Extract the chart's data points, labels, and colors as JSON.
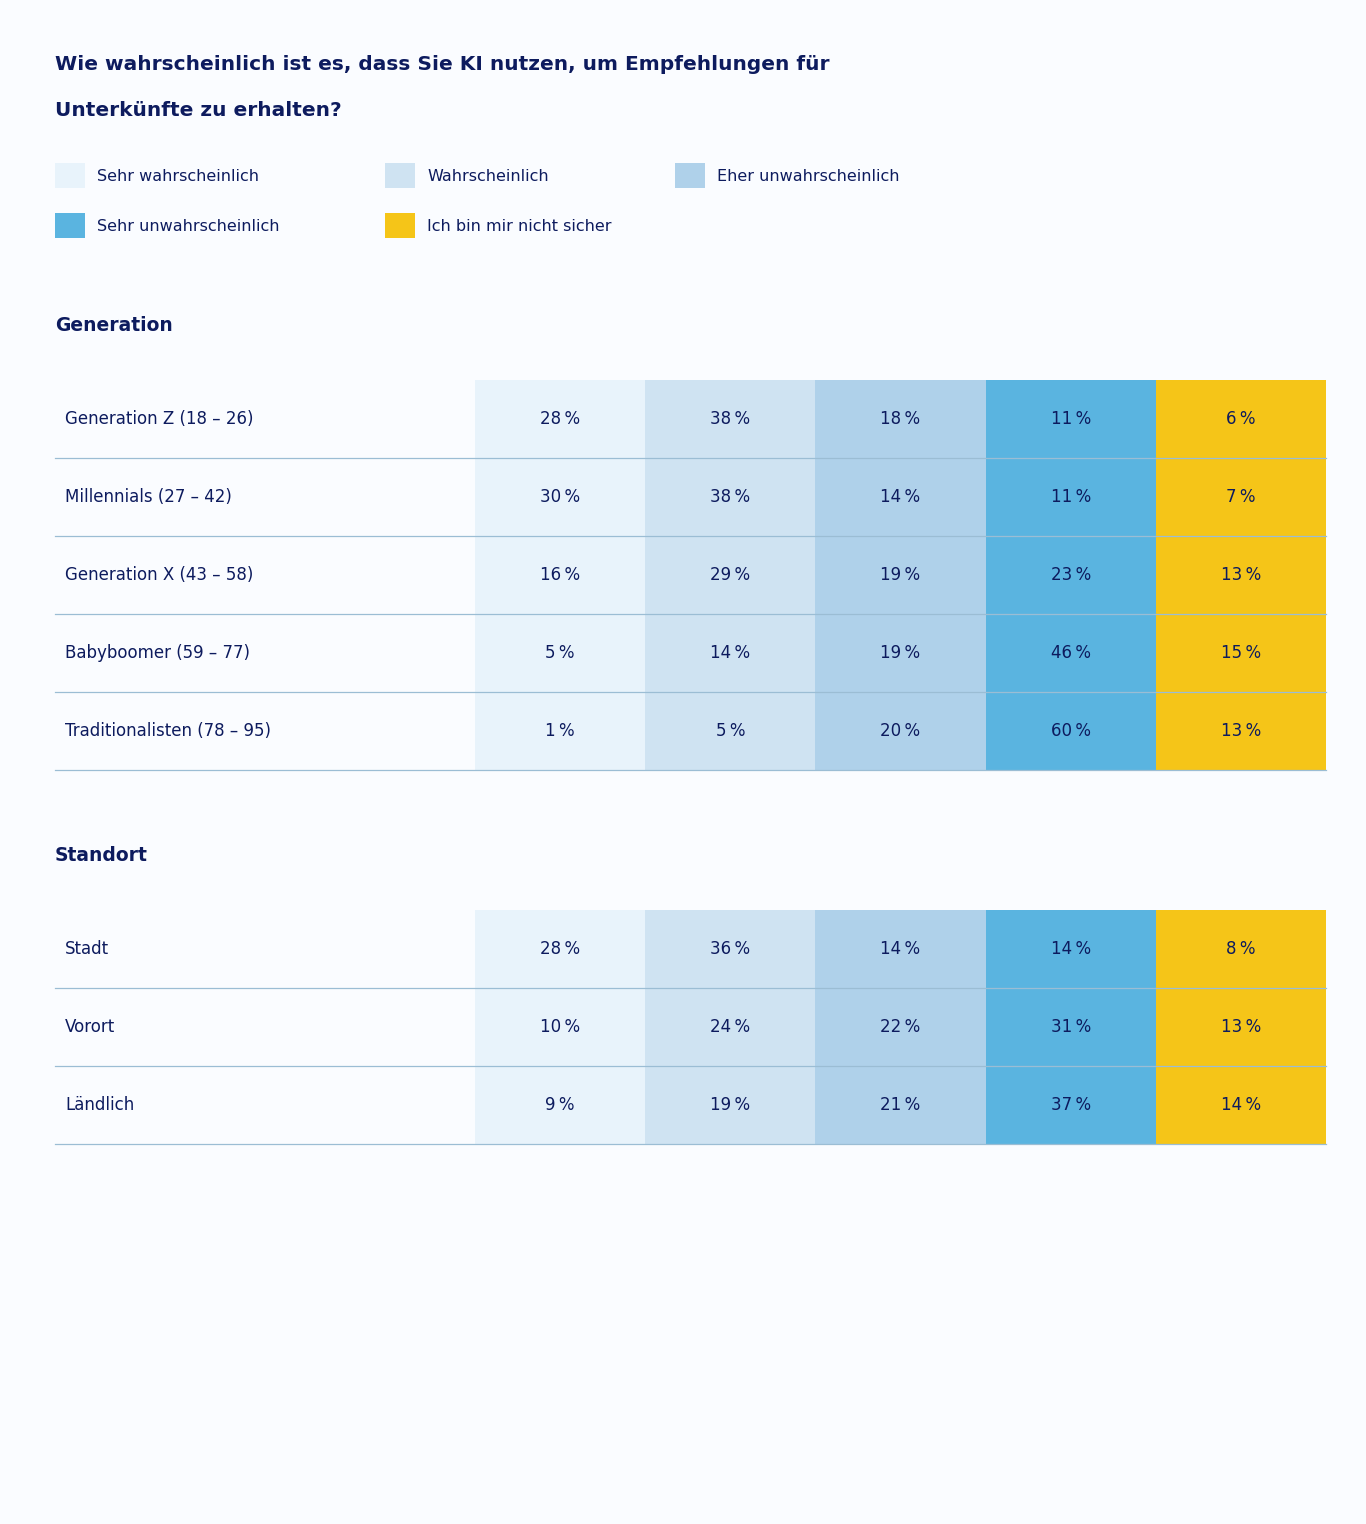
{
  "title_line1": "Wie wahrscheinlich ist es, dass Sie KI nutzen, um Empfehlungen für",
  "title_line2": "Unterkünfte zu erhalten?",
  "background_color": "#fafcff",
  "text_color": "#0d1b5e",
  "legend_items": [
    {
      "label": "Sehr wahrscheinlich",
      "color": "#e8f3fb"
    },
    {
      "label": "Wahrscheinlich",
      "color": "#cfe3f2"
    },
    {
      "label": "Eher unwahrscheinlich",
      "color": "#afd1ea"
    },
    {
      "label": "Sehr unwahrscheinlich",
      "color": "#5ab4e0"
    },
    {
      "label": "Ich bin mir nicht sicher",
      "color": "#f5c518"
    }
  ],
  "col_colors": [
    "#e8f3fb",
    "#cfe3f2",
    "#afd1ea",
    "#5ab4e0",
    "#f5c518"
  ],
  "divider_color": "#9bbdd4",
  "sections": [
    {
      "title": "Generation",
      "rows": [
        {
          "label": "Generation Z (18 – 26)",
          "values": [
            28,
            38,
            18,
            11,
            6
          ]
        },
        {
          "label": "Millennials (27 – 42)",
          "values": [
            30,
            38,
            14,
            11,
            7
          ]
        },
        {
          "label": "Generation X (43 – 58)",
          "values": [
            16,
            29,
            19,
            23,
            13
          ]
        },
        {
          "label": "Babyboomer (59 – 77)",
          "values": [
            5,
            14,
            19,
            46,
            15
          ]
        },
        {
          "label": "Traditionalisten (78 – 95)",
          "values": [
            1,
            5,
            20,
            60,
            13
          ]
        }
      ]
    },
    {
      "title": "Standort",
      "rows": [
        {
          "label": "Stadt",
          "values": [
            28,
            36,
            14,
            14,
            8
          ]
        },
        {
          "label": "Vorort",
          "values": [
            10,
            24,
            22,
            31,
            13
          ]
        },
        {
          "label": "Ländlich",
          "values": [
            9,
            19,
            21,
            37,
            14
          ]
        }
      ]
    }
  ]
}
